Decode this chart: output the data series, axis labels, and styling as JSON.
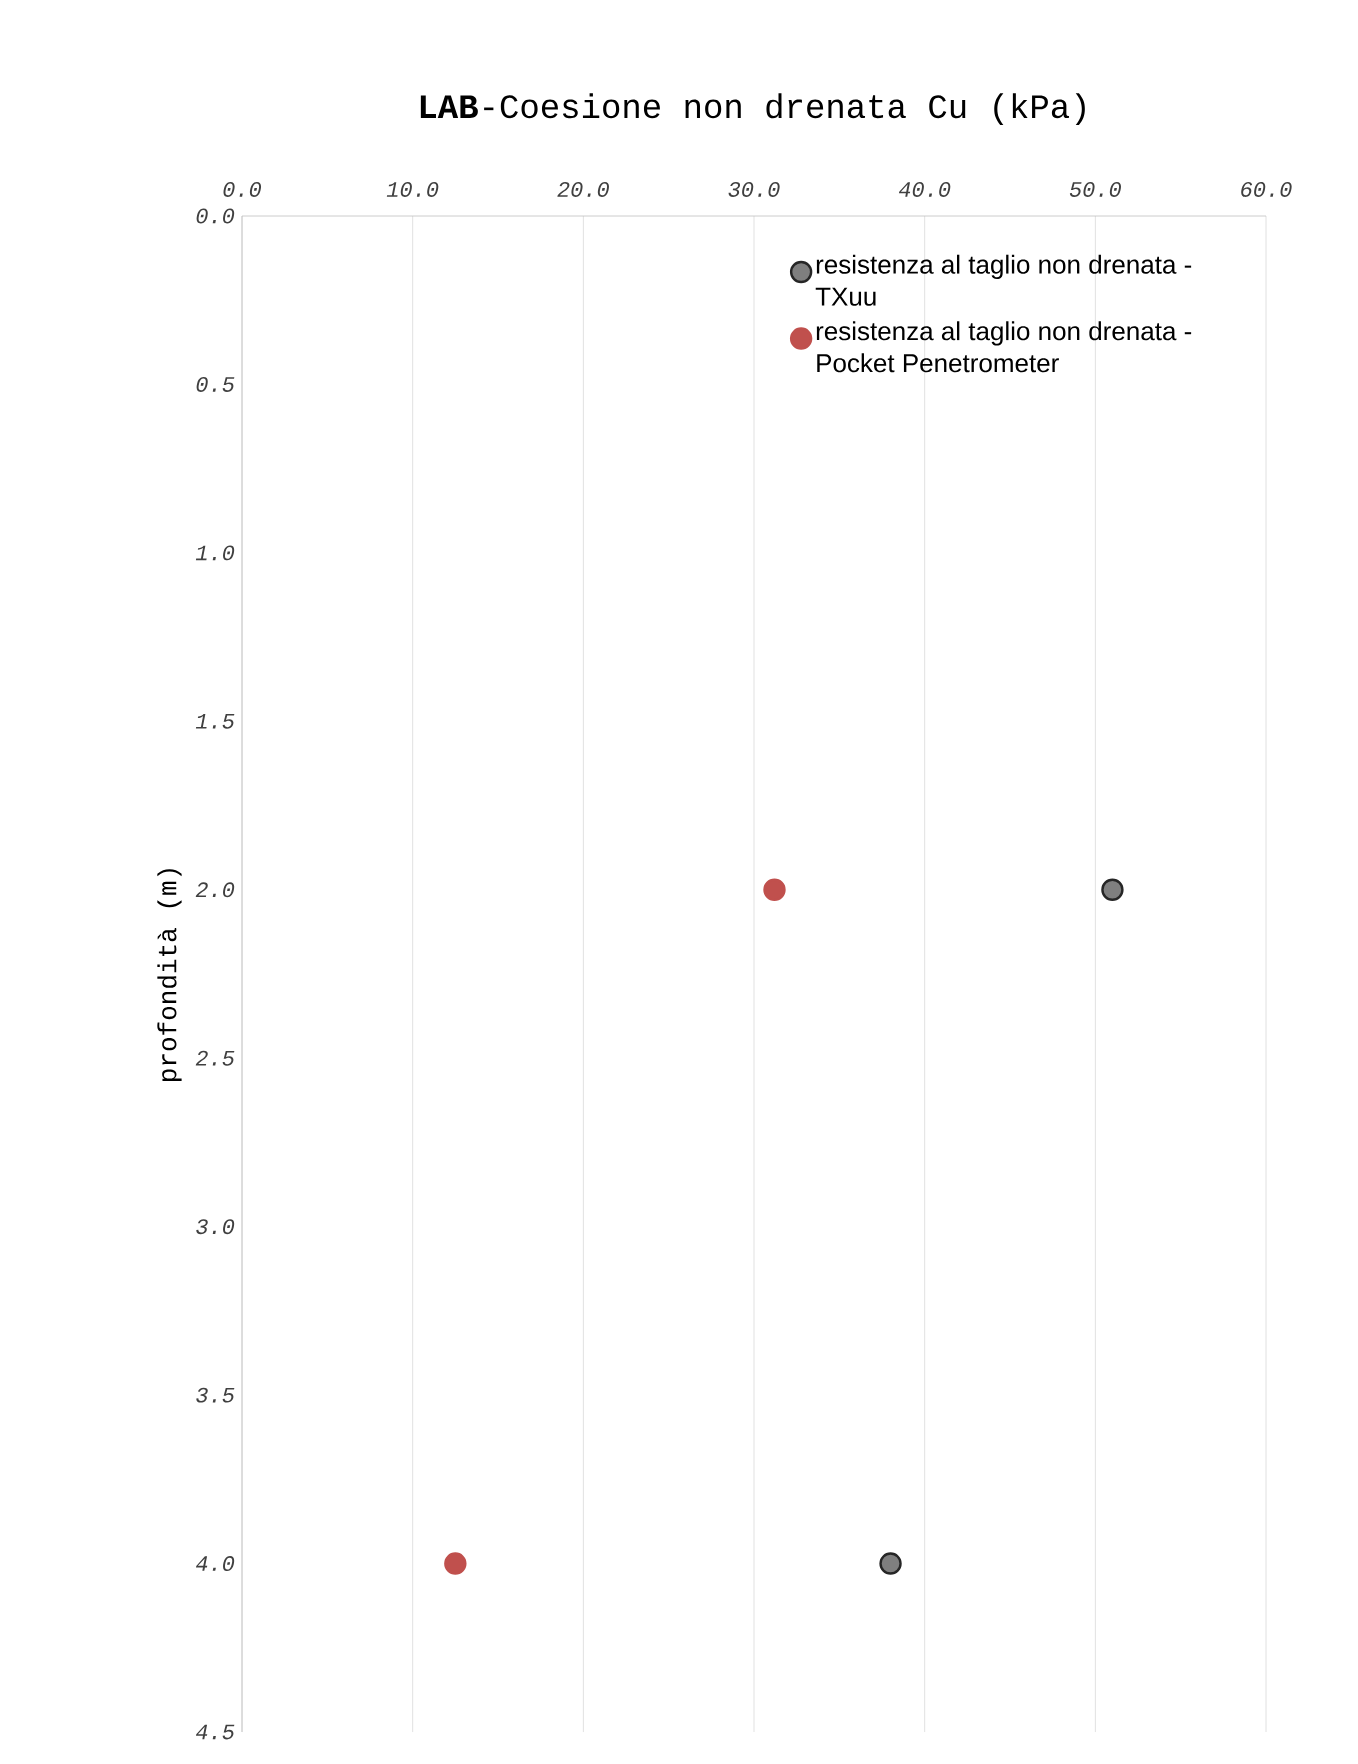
{
  "chart_data": {
    "type": "scatter",
    "title": "**LAB**-Coesione non drenata Cu (kPa)",
    "ylabel": "profondità (m)",
    "xlim": [
      0,
      60
    ],
    "ylim": [
      4.5,
      0
    ],
    "xticks": [
      {
        "value": 0,
        "label": "0.0"
      },
      {
        "value": 10,
        "label": "10.0"
      },
      {
        "value": 20,
        "label": "20.0"
      },
      {
        "value": 30,
        "label": "30.0"
      },
      {
        "value": 40,
        "label": "40.0"
      },
      {
        "value": 50,
        "label": "50.0"
      },
      {
        "value": 60,
        "label": "60.0"
      }
    ],
    "yticks": [
      {
        "value": 0,
        "label": "0.0"
      },
      {
        "value": 0.5,
        "label": "0.5"
      },
      {
        "value": 1,
        "label": "1.0"
      },
      {
        "value": 1.5,
        "label": "1.5"
      },
      {
        "value": 2,
        "label": "2.0"
      },
      {
        "value": 2.5,
        "label": "2.5"
      },
      {
        "value": 3,
        "label": "3.0"
      },
      {
        "value": 3.5,
        "label": "3.5"
      },
      {
        "value": 4,
        "label": "4.0"
      },
      {
        "value": 4.5,
        "label": "4.5"
      }
    ],
    "grid": "x",
    "legend": "top right",
    "marker": "circle",
    "series": [
      {
        "name": "resistenza al taglio non drenata - TXuu",
        "color": "#7f7f7f",
        "x": [
          51.0,
          38.0
        ],
        "values": [
          2.0,
          4.0
        ]
      },
      {
        "name": "resistenza al taglio non drenata - Pocket Penetrometer",
        "color": "#c0504d",
        "x": [
          31.2,
          12.5
        ],
        "values": [
          2.0,
          4.0
        ]
      }
    ]
  }
}
